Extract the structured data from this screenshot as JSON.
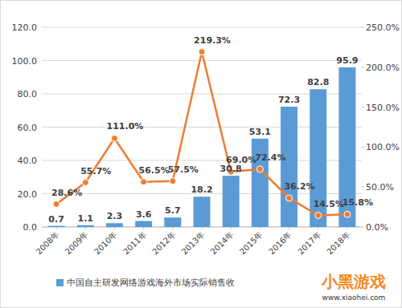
{
  "chart_data": {
    "type": "bar",
    "categories": [
      "2008年",
      "2009年",
      "2010年",
      "2011年",
      "2012年",
      "2013年",
      "2014年",
      "2015年",
      "2016年",
      "2017年",
      "2018年"
    ],
    "series": [
      {
        "name": "中国自主研发网络游戏海外市场实际销售收",
        "type": "bar",
        "color": "#5b9bd5",
        "values": [
          0.7,
          1.1,
          2.3,
          3.6,
          5.7,
          18.2,
          30.8,
          53.1,
          72.3,
          82.8,
          95.9
        ]
      },
      {
        "type": "line",
        "axis": "y2",
        "color": "#ed7d31",
        "marker": "circle",
        "line_style": "solid",
        "values": [
          28.6,
          55.7,
          111.0,
          56.5,
          57.5,
          219.3,
          69.0,
          72.4,
          36.2,
          14.5,
          15.8
        ],
        "value_labels": [
          "28.6%",
          "55.7%",
          "111.0%",
          "56.5%",
          "57.5%",
          "219.3%",
          "69.0%",
          "72.4%",
          "36.2%",
          "14.5%",
          "15.8%"
        ]
      }
    ],
    "ylim": [
      0,
      120
    ],
    "yticks": [
      {
        "value": 0,
        "label": "0.0"
      },
      {
        "value": 20,
        "label": "20.0"
      },
      {
        "value": 40,
        "label": "40.0"
      },
      {
        "value": 60,
        "label": "60.0"
      },
      {
        "value": 80,
        "label": "80.0"
      },
      {
        "value": 100,
        "label": "100.0"
      },
      {
        "value": 120,
        "label": "120.0"
      }
    ],
    "y2lim": [
      0,
      250
    ],
    "y2ticks": [
      {
        "value": 0,
        "label": "0.0%"
      },
      {
        "value": 50,
        "label": "50.0%"
      },
      {
        "value": 100,
        "label": "100.0%"
      },
      {
        "value": 150,
        "label": "150.0%"
      },
      {
        "value": 200,
        "label": "200.0%"
      },
      {
        "value": 250,
        "label": "250.0%"
      }
    ],
    "grid": true,
    "data_labels": true,
    "legend": "bottom",
    "annotations": [
      "小黑游戏",
      "www.xiaohei.com"
    ]
  }
}
